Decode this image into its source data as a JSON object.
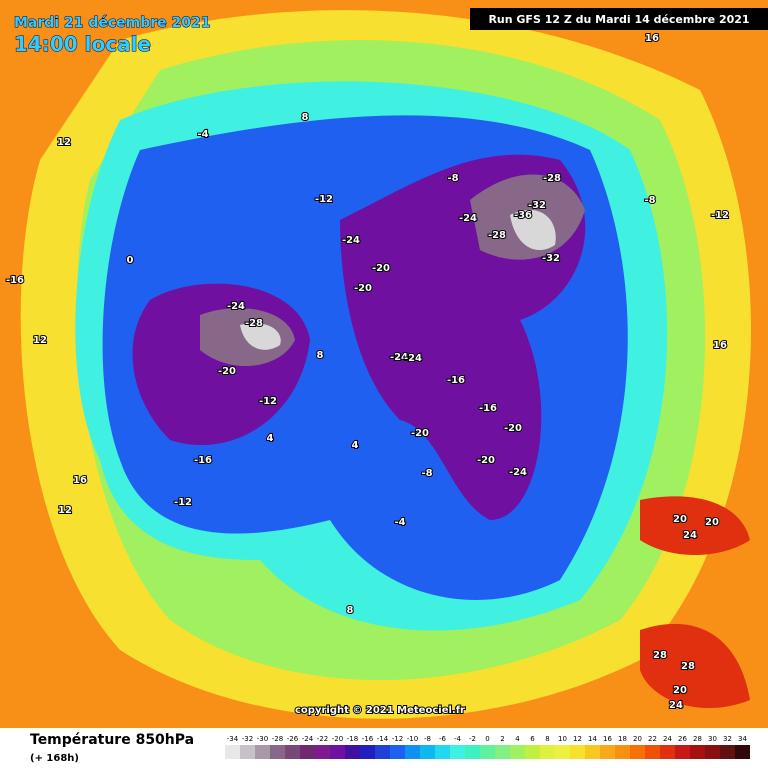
{
  "header": {
    "date": "Mardi 21 décembre 2021",
    "time": "14:00 locale",
    "run": "Run GFS 12 Z du Mardi 14 décembre 2021"
  },
  "copyright": "copyright © 2021 Meteociel.fr",
  "legend": {
    "title": "Température 850hPa",
    "subtitle": "(+ 168h)",
    "values": [
      -34,
      -32,
      -30,
      -28,
      -26,
      -24,
      -22,
      -20,
      -18,
      -16,
      -14,
      -12,
      -10,
      -8,
      -6,
      -4,
      -2,
      0,
      2,
      4,
      6,
      8,
      10,
      12,
      14,
      16,
      18,
      20,
      22,
      24,
      26,
      28,
      30,
      32,
      34
    ],
    "colors": [
      "#e8e8e8",
      "#c8c0c8",
      "#a898a8",
      "#886888",
      "#784878",
      "#702870",
      "#801890",
      "#7010a0",
      "#4010a0",
      "#2020c0",
      "#2040d8",
      "#2060f0",
      "#1090f0",
      "#10b8f0",
      "#20d8f0",
      "#40f0e0",
      "#40f0c0",
      "#60f0a0",
      "#80f080",
      "#a0f060",
      "#c0f040",
      "#e0f040",
      "#f0f040",
      "#f8e030",
      "#f8c820",
      "#f8a818",
      "#f89010",
      "#f87008",
      "#f05008",
      "#e03010",
      "#c81818",
      "#a81010",
      "#881010",
      "#601010",
      "#300808"
    ]
  },
  "map": {
    "labels": [
      -28,
      -32,
      -36,
      -28,
      -32,
      -24,
      -24,
      -20,
      -20,
      -24,
      -24,
      -28,
      -20,
      -24,
      -20,
      -16,
      -16,
      -20,
      -24,
      -20,
      -16,
      -12,
      -12,
      -12,
      -8,
      -8,
      -4,
      -4,
      0,
      4,
      4,
      8,
      8,
      8,
      12,
      12,
      12,
      16,
      16,
      16,
      20,
      20,
      24,
      28,
      28,
      20,
      24,
      -16,
      -12,
      -8
    ]
  }
}
